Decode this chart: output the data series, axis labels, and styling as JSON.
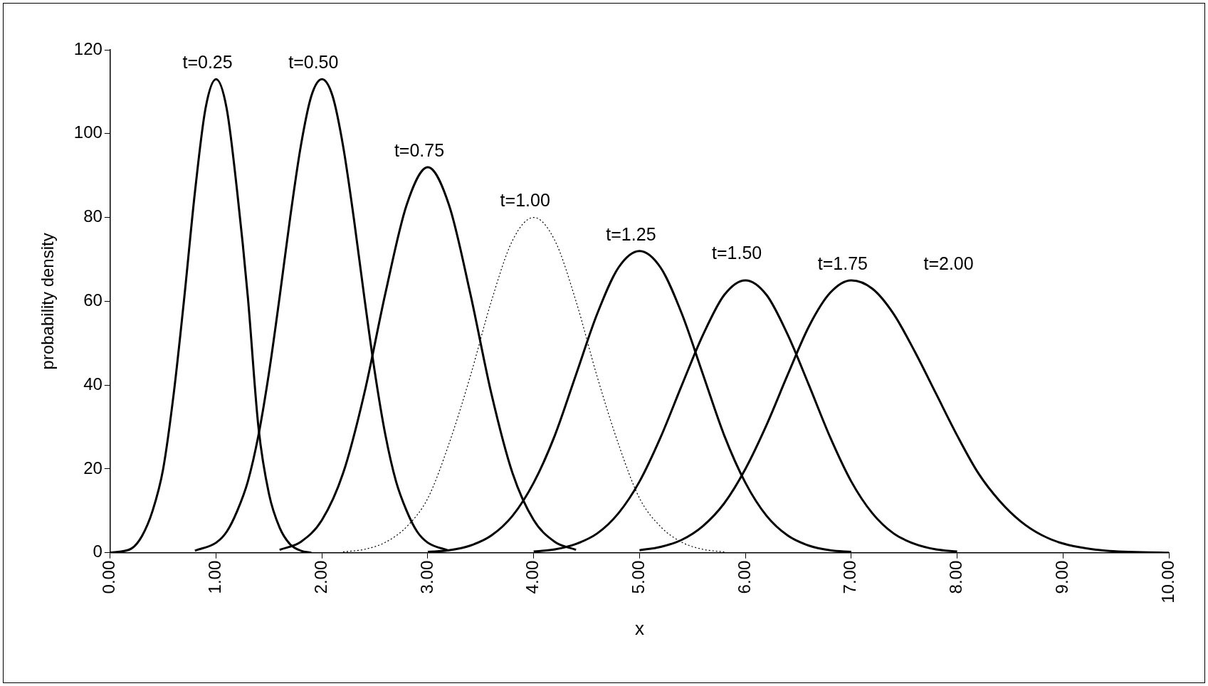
{
  "chart_data": {
    "type": "line",
    "xlabel": "x",
    "ylabel": "probability density",
    "xlim": [
      0,
      10
    ],
    "ylim": [
      0,
      120
    ],
    "xticks": [
      {
        "value": 0,
        "label": "0.00"
      },
      {
        "value": 1,
        "label": "1.00"
      },
      {
        "value": 2,
        "label": "2.00"
      },
      {
        "value": 3,
        "label": "3.00"
      },
      {
        "value": 4,
        "label": "4.00"
      },
      {
        "value": 5,
        "label": "5.00"
      },
      {
        "value": 6,
        "label": "6.00"
      },
      {
        "value": 7,
        "label": "7.00"
      },
      {
        "value": 8,
        "label": "8.00"
      },
      {
        "value": 9,
        "label": "9.00"
      },
      {
        "value": 10,
        "label": "10.00"
      }
    ],
    "yticks": [
      0,
      20,
      40,
      60,
      80,
      100,
      120
    ],
    "grid": false,
    "legend": false,
    "marker": "none",
    "series": [
      {
        "color": "#000000",
        "x": [
          0,
          0.2,
          0.3,
          0.4,
          0.5,
          0.6,
          0.7,
          0.8,
          0.9,
          1,
          1.1,
          1.2,
          1.3,
          1.4,
          1.5,
          1.6,
          1.7,
          1.8,
          1.9
        ],
        "values": [
          0,
          1,
          4,
          10,
          20,
          38,
          61,
          86,
          106,
          113,
          106,
          86,
          61,
          30,
          14,
          6,
          2,
          0.5,
          0
        ]
      },
      {
        "color": "#000000",
        "x": [
          0.8,
          1,
          1.1,
          1.2,
          1.3,
          1.4,
          1.5,
          1.6,
          1.7,
          1.8,
          1.9,
          2,
          2.1,
          2.2,
          2.3,
          2.4,
          2.5,
          2.6,
          2.7,
          2.8,
          2.9,
          3,
          3.2
        ],
        "values": [
          0.5,
          2.4,
          5,
          10,
          17,
          28,
          43,
          61,
          80,
          97,
          109,
          113,
          109,
          97,
          80,
          61,
          43,
          28,
          17,
          10,
          5,
          2.4,
          0.5
        ]
      },
      {
        "color": "#000000",
        "x": [
          1.6,
          1.8,
          2,
          2.2,
          2.4,
          2.6,
          2.8,
          3,
          3.2,
          3.4,
          3.6,
          3.8,
          4,
          4.2,
          4.4
        ],
        "values": [
          0.7,
          2.6,
          7.8,
          19,
          38,
          62,
          83,
          92,
          83,
          62,
          38,
          19,
          7.8,
          2.6,
          0.7
        ]
      },
      {
        "color": "#000000",
        "line_style": "dotted",
        "x": [
          2.2,
          2.4,
          2.6,
          2.8,
          3,
          3.2,
          3.4,
          3.6,
          3.8,
          4,
          4.2,
          4.4,
          4.6,
          4.8,
          5,
          5.2,
          5.4,
          5.6,
          5.8
        ],
        "values": [
          0.2,
          0.8,
          2.5,
          6.2,
          13,
          26,
          42,
          60,
          74.5,
          80,
          74.5,
          60,
          42,
          26,
          13,
          6.2,
          2.5,
          0.8,
          0.2
        ]
      },
      {
        "color": "#000000",
        "x": [
          3,
          3.2,
          3.4,
          3.6,
          3.8,
          4,
          4.2,
          4.4,
          4.6,
          4.8,
          5,
          5.2,
          5.4,
          5.6,
          5.8,
          6,
          6.2,
          6.4,
          6.6,
          6.8,
          7
        ],
        "values": [
          0.2,
          0.6,
          1.7,
          4.1,
          8.8,
          16.7,
          28,
          42.5,
          57,
          68,
          72,
          68,
          57,
          42.5,
          28,
          16.7,
          8.8,
          4.1,
          1.7,
          0.6,
          0.2
        ]
      },
      {
        "color": "#000000",
        "x": [
          4,
          4.2,
          4.4,
          4.6,
          4.8,
          5,
          5.2,
          5.4,
          5.6,
          5.8,
          6,
          6.2,
          6.4,
          6.6,
          6.8,
          7,
          7.2,
          7.4,
          7.6,
          7.8,
          8
        ],
        "values": [
          0.3,
          0.8,
          2.1,
          4.6,
          9.4,
          17,
          27.6,
          40,
          52,
          61.5,
          65,
          61.5,
          52,
          40,
          27.6,
          17,
          9.4,
          4.6,
          2.1,
          0.8,
          0.3
        ]
      },
      {
        "color": "#000000",
        "x": [
          5,
          5.2,
          5.4,
          5.6,
          5.8,
          6,
          6.2,
          6.4,
          6.6,
          6.8,
          7,
          7.2,
          7.4,
          7.6,
          7.8,
          8,
          8.2,
          8.4,
          8.6,
          8.8,
          9,
          9.4,
          10
        ],
        "values": [
          0.6,
          1.4,
          3.1,
          6.4,
          11.8,
          20,
          30.5,
          42.5,
          54,
          62,
          65,
          63,
          57,
          48,
          38,
          28,
          19,
          12.4,
          7.5,
          4.2,
          2.2,
          0.5,
          0
        ]
      }
    ],
    "annotations": [
      "t=0.25",
      "t=0.50",
      "t=0.75",
      "t=1.00",
      "t=1.25",
      "t=1.50",
      "t=1.75",
      "t=2.00"
    ]
  }
}
